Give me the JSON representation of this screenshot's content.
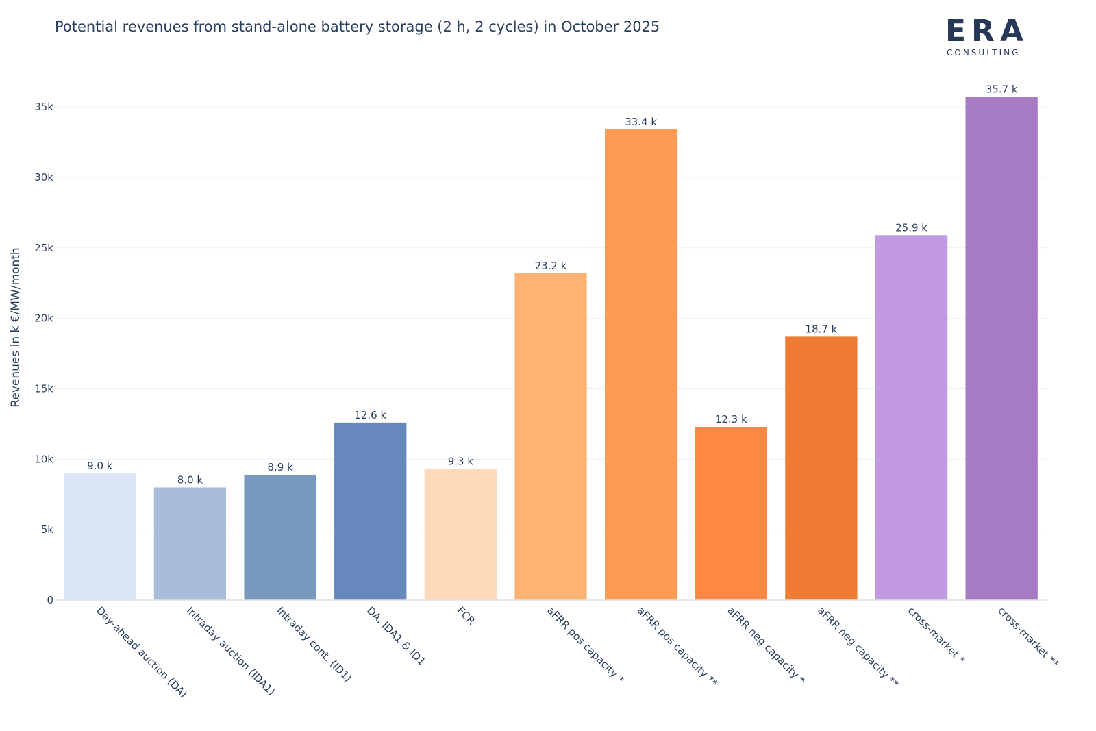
{
  "chart_data": {
    "type": "bar",
    "title": "Potential revenues from stand-alone battery storage (2 h, 2 cycles) in October 2025",
    "xlabel": "",
    "ylabel": "Revenues in k €/MW/month",
    "ylim": [
      0,
      37000
    ],
    "yticks": [
      0,
      5000,
      10000,
      15000,
      20000,
      25000,
      30000,
      35000
    ],
    "ytick_labels": [
      "0",
      "5k",
      "10k",
      "15k",
      "20k",
      "25k",
      "30k",
      "35k"
    ],
    "grid": true,
    "categories": [
      "Day-ahead auction (DA)",
      "Intraday auction (IDA1)",
      "Intraday cont. (ID1)",
      "DA, IDA1 & ID1",
      "FCR",
      "aFRR pos capacity *",
      "aFRR pos capacity **",
      "aFRR neg capacity *",
      "aFRR neg capacity **",
      "cross-market *",
      "cross-market **"
    ],
    "values": [
      9000,
      8000,
      8900,
      12600,
      9300,
      23200,
      33400,
      12300,
      18700,
      25900,
      35700
    ],
    "data_labels": [
      "9.0 k",
      "8.0 k",
      "8.9 k",
      "12.6 k",
      "9.3 k",
      "23.2 k",
      "33.4 k",
      "12.3 k",
      "18.7 k",
      "25.9 k",
      "35.7 k"
    ],
    "colors": [
      "#dae5f5",
      "#a9bcd9",
      "#7899c0",
      "#6688bc",
      "#fedabb",
      "#feb374",
      "#fe9b53",
      "#fe8743",
      "#f07b35",
      "#c29ae1",
      "#a77ac4"
    ]
  },
  "logo": {
    "mark": "ERA",
    "subtitle": "CONSULTING"
  }
}
